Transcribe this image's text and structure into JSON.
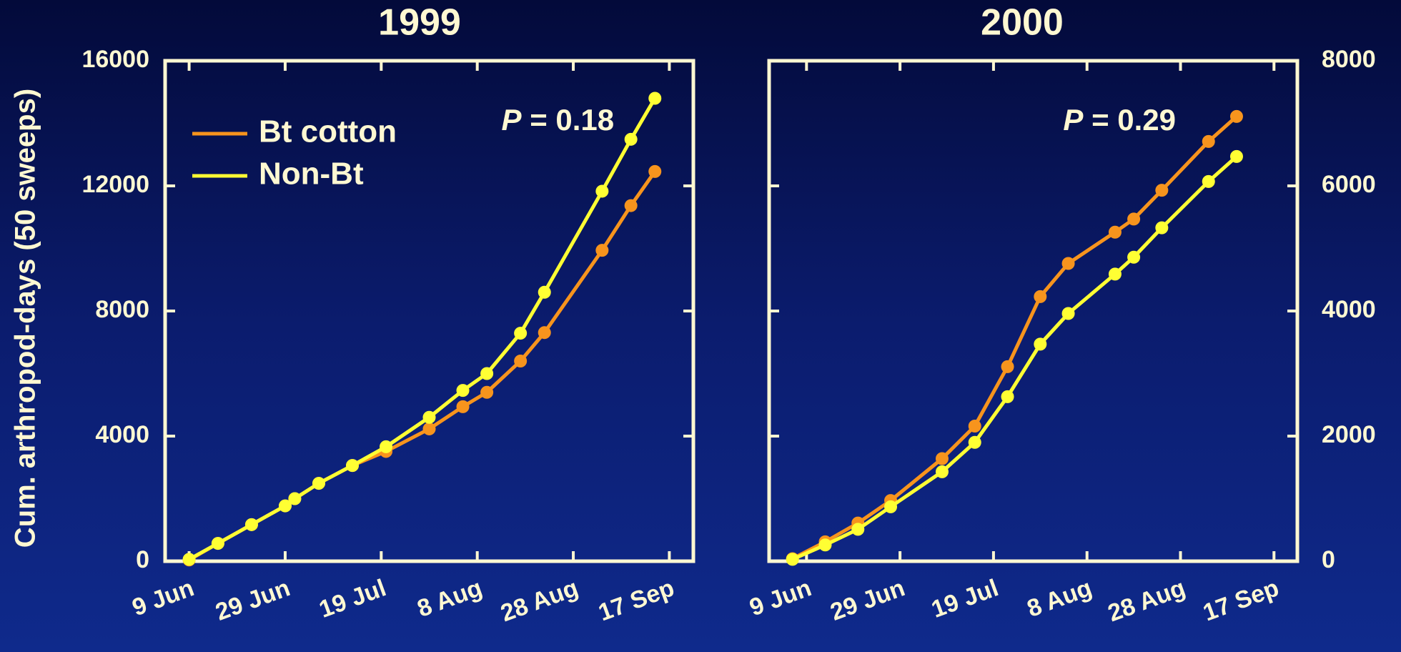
{
  "chart_data": [
    {
      "type": "line",
      "title": "1999",
      "ylabel": "Cum. arthropod-days (50 sweeps)",
      "annotation": "P = 0.18",
      "x": [
        "9 Jun",
        "15 Jun",
        "22 Jun",
        "29 Jun",
        "1 Jul",
        "6 Jul",
        "13 Jul",
        "20 Jul",
        "29 Jul",
        "5 Aug",
        "10 Aug",
        "17 Aug",
        "22 Aug",
        "3 Sep",
        "9 Sep",
        "14 Sep"
      ],
      "series": [
        {
          "name": "Bt cotton",
          "color": "#f7941d",
          "values": [
            40,
            570,
            1170,
            1770,
            2000,
            2490,
            3060,
            3510,
            4230,
            4940,
            5400,
            6400,
            7310,
            9940,
            11370,
            12460
          ]
        },
        {
          "name": "Non-Bt",
          "color": "#ffff33",
          "values": [
            60,
            570,
            1170,
            1770,
            2000,
            2490,
            3060,
            3660,
            4600,
            5460,
            6000,
            7290,
            8600,
            11830,
            13490,
            14800
          ]
        }
      ],
      "xlim": [
        "4 Jun",
        "22 Sep"
      ],
      "xticks": [
        "9 Jun",
        "29 Jun",
        "19 Jul",
        "8 Aug",
        "28 Aug",
        "17 Sep"
      ],
      "ylim": [
        0,
        16000
      ],
      "yticks": [
        0,
        4000,
        8000,
        12000,
        16000
      ],
      "y_axis_side": "left",
      "legend": "upper left"
    },
    {
      "type": "line",
      "title": "2000",
      "annotation": "P = 0.29",
      "x": [
        "6 Jun",
        "13 Jun",
        "20 Jun",
        "27 Jun",
        "8 Jul",
        "15 Jul",
        "22 Jul",
        "29 Jul",
        "4 Aug",
        "14 Aug",
        "18 Aug",
        "24 Aug",
        "3 Sep",
        "9 Sep"
      ],
      "series": [
        {
          "color": "#f7941d",
          "values": [
            40,
            310,
            610,
            970,
            1640,
            2160,
            3110,
            4230,
            4760,
            5260,
            5470,
            5930,
            6710,
            7110
          ]
        },
        {
          "color": "#ffff33",
          "values": [
            30,
            260,
            510,
            870,
            1430,
            1900,
            2630,
            3470,
            3960,
            4590,
            4860,
            5330,
            6070,
            6470
          ]
        }
      ],
      "xlim": [
        "1 Jun",
        "22 Sep"
      ],
      "xticks": [
        "9 Jun",
        "29 Jun",
        "19 Jul",
        "8 Aug",
        "28 Aug",
        "17 Sep"
      ],
      "ylim": [
        0,
        8000
      ],
      "yticks": [
        0,
        2000,
        4000,
        6000,
        8000
      ],
      "y_axis_side": "right"
    }
  ]
}
